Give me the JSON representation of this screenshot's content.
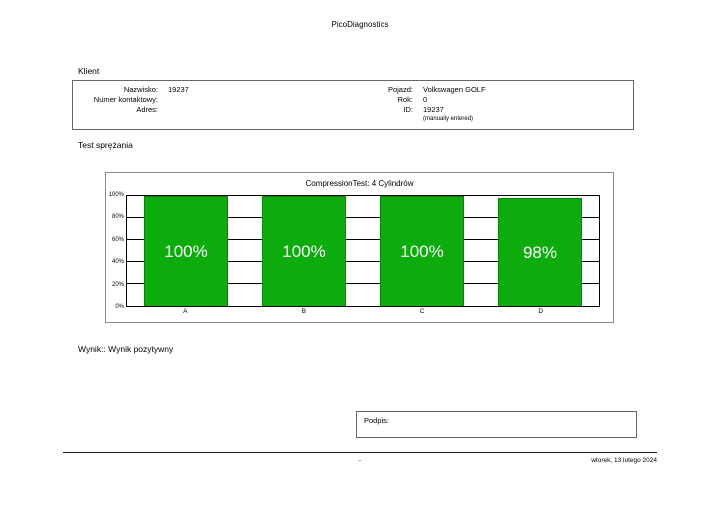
{
  "page": {
    "app_title": "PicoDiagnostics"
  },
  "client": {
    "section_title": "Klient",
    "left": {
      "rows": [
        {
          "label": "Nazwisko:",
          "value": "19237"
        },
        {
          "label": "Numer kontaktowy:",
          "value": ""
        },
        {
          "label": "Adres:",
          "value": ""
        }
      ]
    },
    "right": {
      "rows": [
        {
          "label": "Pojazd:",
          "value": "Volkswagen GOLF"
        },
        {
          "label": "Rok:",
          "value": "0"
        },
        {
          "label": "ID:",
          "value": "19237"
        }
      ],
      "note": "(manually entered)"
    }
  },
  "test_section": {
    "title": "Test sprężania"
  },
  "chart_data": {
    "type": "bar",
    "title": "CompressionTest: 4 Cylindrów",
    "categories": [
      "A",
      "B",
      "C",
      "D"
    ],
    "values": [
      100,
      100,
      100,
      98
    ],
    "value_labels": [
      "100%",
      "100%",
      "100%",
      "98%"
    ],
    "yticks": [
      "0%",
      "20%",
      "40%",
      "60%",
      "80%",
      "100%"
    ],
    "ylim": [
      0,
      100
    ],
    "grid": true,
    "legend": "none",
    "bar_color": "#0bac0b",
    "bar_label_color": "#ffffff"
  },
  "result": {
    "text": "Wynik:: Wynik pozytywny"
  },
  "signature": {
    "label": "Podpis:"
  },
  "footer": {
    "center": "-",
    "date": "wtorek, 13 lutego 2024"
  }
}
